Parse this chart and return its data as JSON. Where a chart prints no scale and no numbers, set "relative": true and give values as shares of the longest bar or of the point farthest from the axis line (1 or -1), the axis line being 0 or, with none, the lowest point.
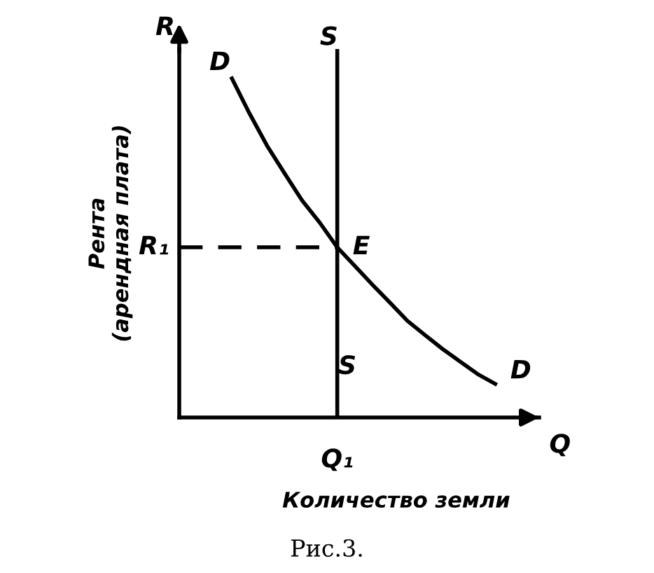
{
  "chart_data": {
    "type": "line",
    "relative": true,
    "xlabel": "Количество земли",
    "ylabel": "Рента\n(арендная плата)",
    "marker": "none",
    "categories": [
      null,
      null,
      null,
      null,
      null,
      null,
      null,
      null,
      null,
      null,
      null,
      null,
      null,
      null,
      null,
      null,
      null,
      null,
      null,
      null,
      null
    ],
    "series": [
      {
        "color": "#000000",
        "line_style": "solid",
        "values": [
          null,
          null,
          null,
          1,
          0.897,
          0.802,
          0.72,
          0.64,
          0.575,
          0.502,
          0.447,
          0.392,
          0.339,
          0.285,
          0.243,
          0.202,
          0.165,
          0.128,
          0.099,
          null,
          null
        ]
      }
    ],
    "ref_lines": [
      {
        "axis": "y",
        "value": 0.502,
        "label": "R₁",
        "color": "#000000",
        "line_style": "dashed"
      }
    ],
    "annotations": [
      "D",
      "D",
      "S",
      "S",
      "E",
      "R",
      "Q",
      "Q₁",
      "Рис.3."
    ]
  }
}
